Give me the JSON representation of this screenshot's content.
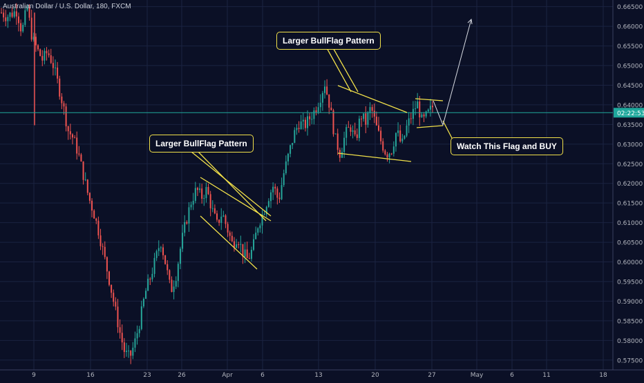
{
  "chart_data": {
    "type": "candlestick",
    "title": "Australian Dollar / U.S. Dollar, 180, FXCM",
    "x_tick_labels": [
      "9",
      "16",
      "23",
      "26",
      "Apr",
      "6",
      "13",
      "20",
      "27",
      "May",
      "6",
      "11",
      "18"
    ],
    "y_tick_labels": [
      "0.66500",
      "0.66000",
      "0.65500",
      "0.65000",
      "0.64500",
      "0.64000",
      "0.63500",
      "0.63000",
      "0.62500",
      "0.62000",
      "0.61500",
      "0.61000",
      "0.60500",
      "0.60000",
      "0.59500",
      "0.59000",
      "0.58500",
      "0.58000",
      "0.57500"
    ],
    "y_ticks": [
      0.665,
      0.66,
      0.655,
      0.65,
      0.645,
      0.64,
      0.635,
      0.63,
      0.625,
      0.62,
      0.615,
      0.61,
      0.605,
      0.6,
      0.595,
      0.59,
      0.585,
      0.58,
      0.575
    ],
    "ylim": [
      0.5725,
      0.6667
    ],
    "current_price": 0.638,
    "countdown_label": "02:22:53",
    "price_path": [
      0.6635,
      0.6625,
      0.6632,
      0.664,
      0.6585,
      0.665,
      0.657,
      0.654,
      0.6515,
      0.6535,
      0.6505,
      0.6455,
      0.64,
      0.6335,
      0.6315,
      0.6275,
      0.622,
      0.6165,
      0.6125,
      0.6075,
      0.6015,
      0.5955,
      0.589,
      0.5825,
      0.577,
      0.5755,
      0.5795,
      0.585,
      0.592,
      0.596,
      0.6005,
      0.6055,
      0.5995,
      0.5925,
      0.5965,
      0.6045,
      0.6105,
      0.6155,
      0.6185,
      0.6165,
      0.6185,
      0.6135,
      0.6095,
      0.6125,
      0.6085,
      0.6045,
      0.6065,
      0.6025,
      0.6005,
      0.6035,
      0.6095,
      0.6125,
      0.6165,
      0.6195,
      0.6155,
      0.6225,
      0.6275,
      0.6325,
      0.6355,
      0.6345,
      0.6365,
      0.6385,
      0.6415,
      0.6455,
      0.6395,
      0.6315,
      0.6275,
      0.6325,
      0.6345,
      0.6305,
      0.6375,
      0.6355,
      0.6395,
      0.6345,
      0.6305,
      0.6275,
      0.6285,
      0.6335,
      0.6295,
      0.6345,
      0.6375,
      0.6405,
      0.6355,
      0.6375,
      0.6395
    ],
    "annotations": [
      {
        "text": "Larger BullFlag Pattern"
      },
      {
        "text": "Larger BullFlag Pattern"
      },
      {
        "text": "Watch This Flag and  BUY"
      }
    ],
    "colors": {
      "up": "#26a69a",
      "down": "#ef5350",
      "background": "#0b1026",
      "grid": "#1b2341",
      "annotation": "#f2e14a",
      "price_line": "#1fa89c",
      "arrow": "#d8dbe2"
    }
  }
}
